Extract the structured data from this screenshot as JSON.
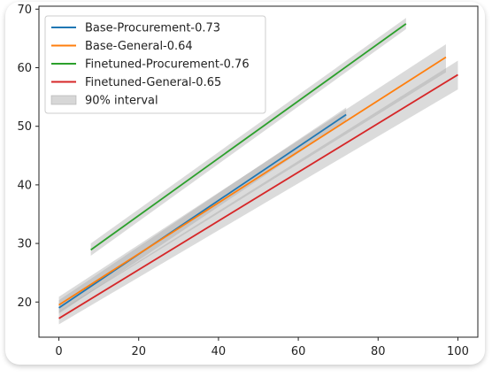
{
  "chart_data": {
    "type": "line",
    "title": "",
    "xlabel": "",
    "ylabel": "",
    "xlim": [
      -5,
      105
    ],
    "ylim": [
      14,
      70.5
    ],
    "xticks": [
      "0",
      "20",
      "40",
      "60",
      "80",
      "100"
    ],
    "yticks": [
      "20",
      "30",
      "40",
      "50",
      "60",
      "70"
    ],
    "grid": false,
    "legend_position": "top-left",
    "interval_label": "90% interval",
    "interval_color": "#a0a0a0",
    "series": [
      {
        "name": "Base-Procurement-0.73",
        "color": "#1f77b4",
        "x": [
          0,
          72
        ],
        "y": [
          19.0,
          52.0
        ],
        "band_lower": [
          18.0,
          50.9
        ],
        "band_upper": [
          20.3,
          53.2
        ]
      },
      {
        "name": "Base-General-0.64",
        "color": "#ff7f0e",
        "x": [
          0,
          97
        ],
        "y": [
          19.5,
          61.8
        ],
        "band_lower": [
          18.3,
          59.2
        ],
        "band_upper": [
          20.9,
          64.0
        ]
      },
      {
        "name": "Finetuned-Procurement-0.76",
        "color": "#2ca02c",
        "x": [
          8,
          87
        ],
        "y": [
          28.9,
          67.5
        ],
        "band_lower": [
          27.9,
          66.6
        ],
        "band_upper": [
          30.0,
          68.5
        ]
      },
      {
        "name": "Finetuned-General-0.65",
        "color": "#d62728",
        "x": [
          0,
          100
        ],
        "y": [
          17.2,
          58.8
        ],
        "band_lower": [
          16.2,
          56.3
        ],
        "band_upper": [
          18.4,
          61.2
        ]
      }
    ]
  }
}
